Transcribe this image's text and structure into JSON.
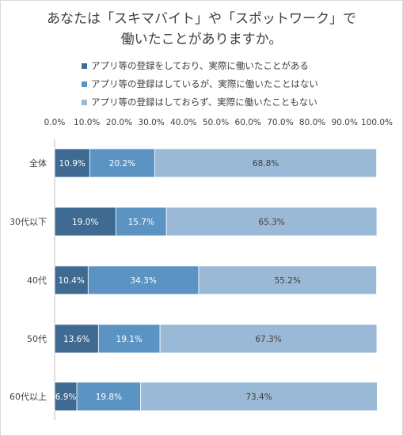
{
  "chart_data": {
    "type": "bar",
    "orientation": "horizontal",
    "stacked": true,
    "title_lines": [
      "あなたは「スキマバイト」や「スポットワーク」で",
      "働いたことがありますか。"
    ],
    "categories": [
      "全体",
      "30代以下",
      "40代",
      "50代",
      "60代以上"
    ],
    "series": [
      {
        "name": "アプリ等の登録をしており、実際に働いたことがある",
        "values": [
          10.9,
          19.0,
          10.4,
          13.6,
          6.9
        ],
        "labels": [
          "10.9%",
          "19.0%",
          "10.4%",
          "13.6%",
          "6.9%"
        ],
        "color": "#3f6b92",
        "label_color": "#ffffff"
      },
      {
        "name": "アプリ等の登録はしているが、実際に働いたことはない",
        "values": [
          20.2,
          15.7,
          34.3,
          19.1,
          19.8
        ],
        "labels": [
          "20.2%",
          "15.7%",
          "34.3%",
          "19.1%",
          "19.8%"
        ],
        "color": "#5b93c3",
        "label_color": "#ffffff"
      },
      {
        "name": "アプリ等の登録はしておらず、実際に働いたこともない",
        "values": [
          68.8,
          65.3,
          55.2,
          67.3,
          73.4
        ],
        "labels": [
          "68.8%",
          "65.3%",
          "55.2%",
          "67.3%",
          "73.4%"
        ],
        "color": "#9ab9d6",
        "label_color": "#404040"
      }
    ],
    "xlim": [
      0,
      100
    ],
    "xticks": [
      0,
      10,
      20,
      30,
      40,
      50,
      60,
      70,
      80,
      90,
      100
    ],
    "xtick_labels": [
      "0.0%",
      "10.0%",
      "20.0%",
      "30.0%",
      "40.0%",
      "50.0%",
      "60.0%",
      "70.0%",
      "80.0%",
      "90.0%",
      "100.0%"
    ],
    "x_axis_position": "top",
    "grid": false,
    "legend": "top-left"
  }
}
